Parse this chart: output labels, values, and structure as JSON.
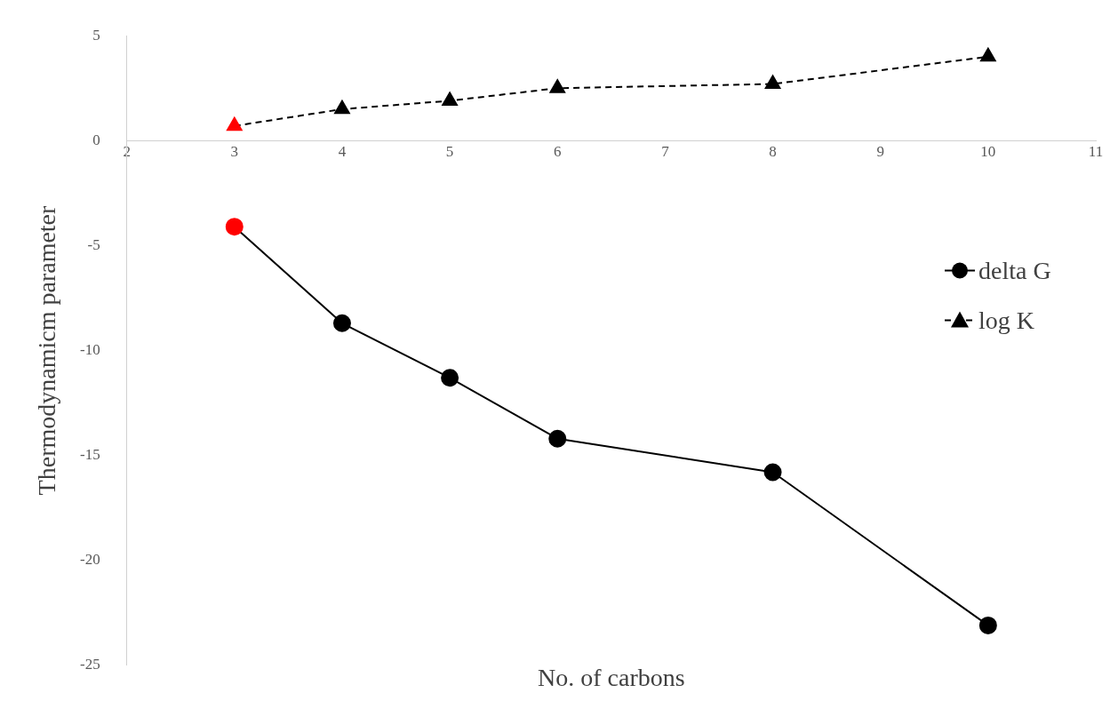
{
  "chart_data": {
    "type": "line",
    "xlabel": "No. of carbons",
    "ylabel": "Thermodynamicm parameter",
    "xlim": [
      2,
      11
    ],
    "xticks": [
      2,
      3,
      4,
      5,
      6,
      7,
      8,
      9,
      10,
      11
    ],
    "ylim": [
      -25,
      5
    ],
    "yticks": [
      -25,
      -20,
      -15,
      -10,
      -5,
      0,
      5
    ],
    "x": [
      3,
      4,
      5,
      6,
      8,
      10
    ],
    "grid": false,
    "legend": "right",
    "series": [
      {
        "name": "delta G",
        "color": "#000000",
        "colors": [
          "#ff0000",
          "#000000",
          "#000000",
          "#000000",
          "#000000",
          "#000000"
        ],
        "marker": "circle",
        "line_style": "solid",
        "values": [
          -4.1,
          -8.7,
          -11.3,
          -14.2,
          -15.8,
          -23.1
        ]
      },
      {
        "name": "log K",
        "color": "#000000",
        "colors": [
          "#ff0000",
          "#000000",
          "#000000",
          "#000000",
          "#000000",
          "#000000"
        ],
        "marker": "triangle",
        "line_style": "dashed",
        "values": [
          0.7,
          1.5,
          1.9,
          2.5,
          2.7,
          4.0
        ]
      }
    ]
  }
}
